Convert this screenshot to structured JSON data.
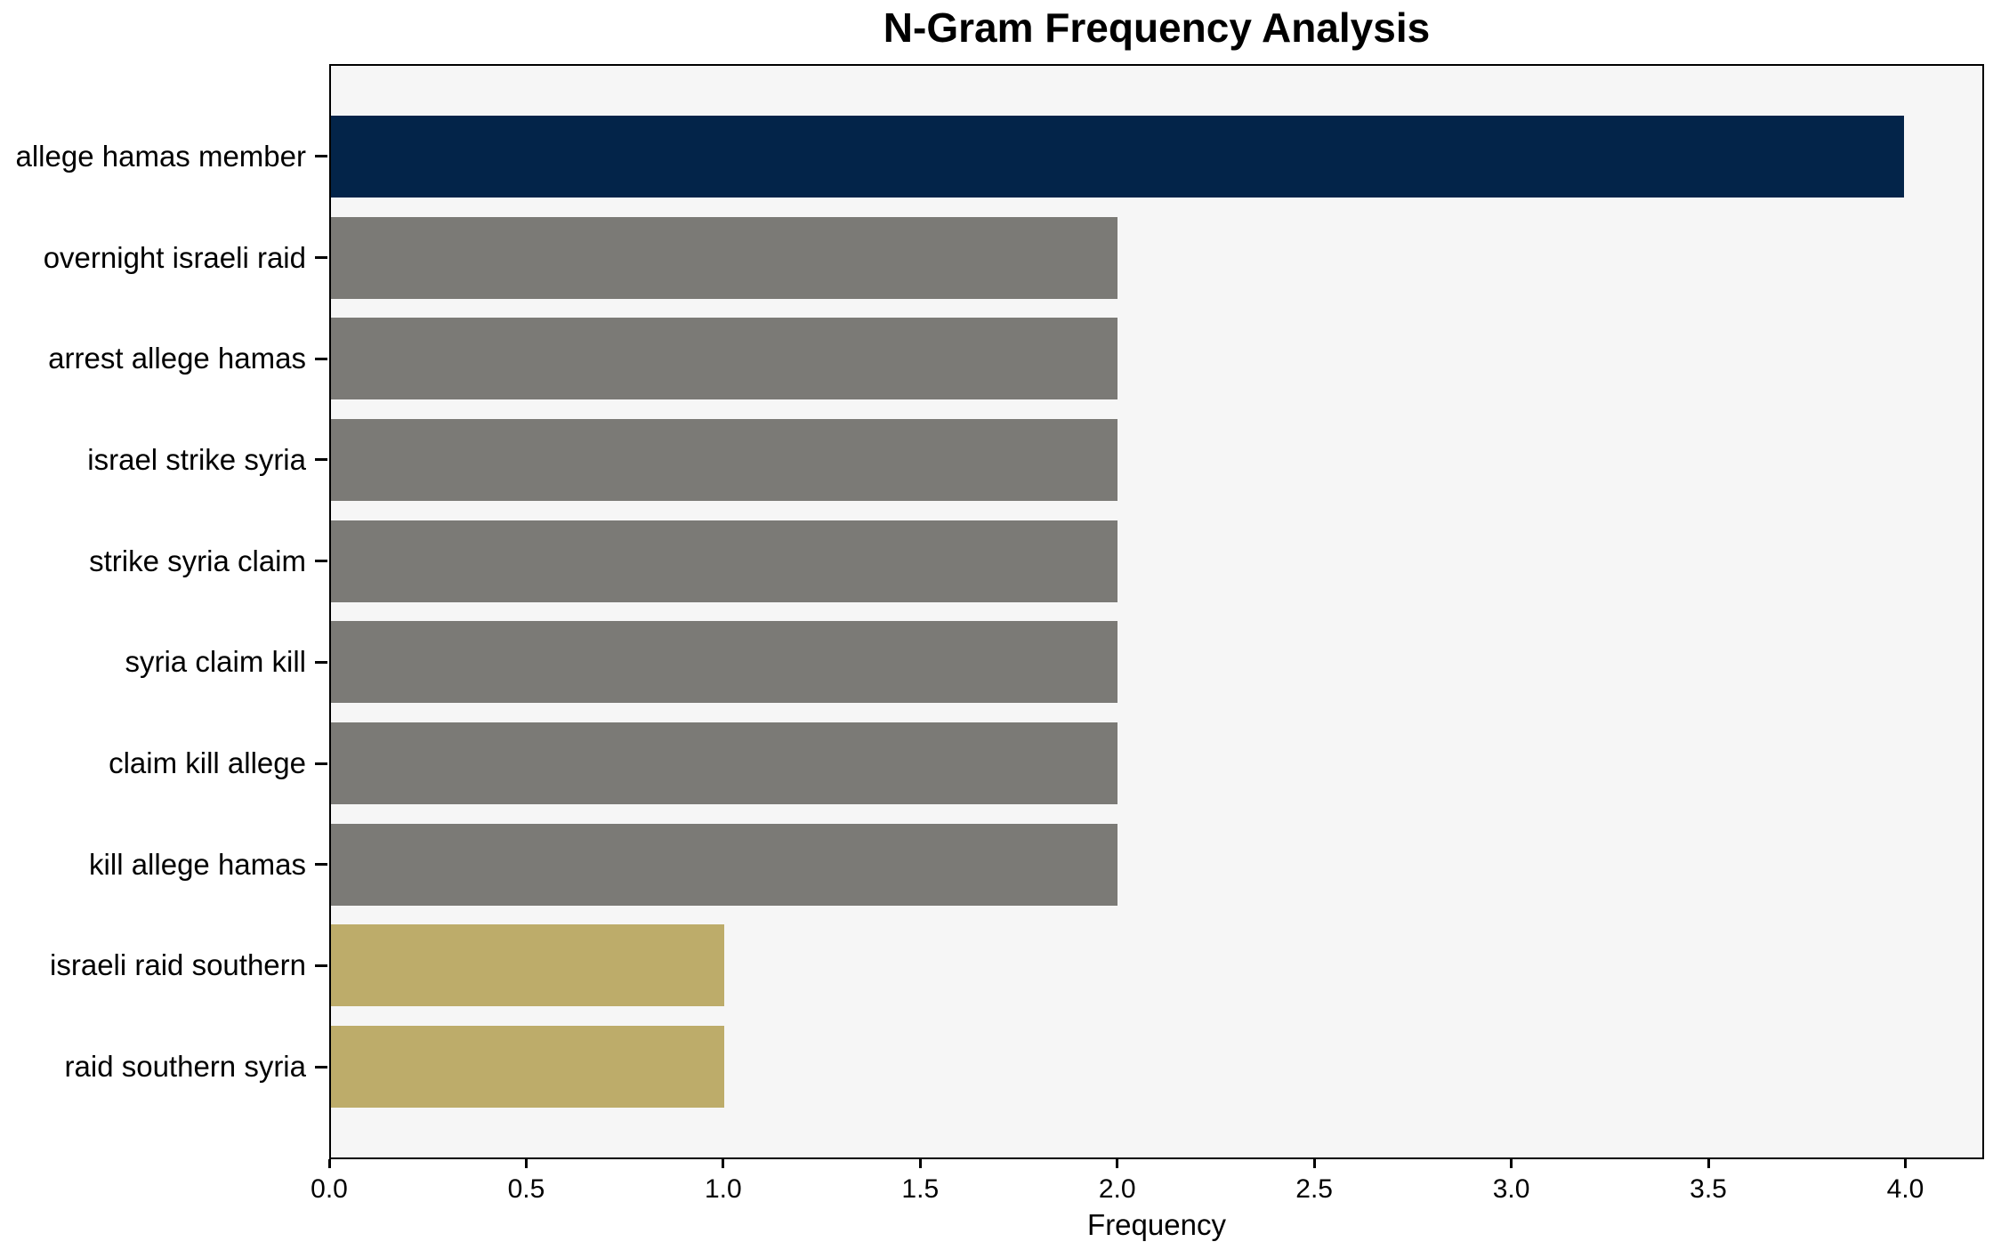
{
  "chart_data": {
    "type": "bar",
    "orientation": "horizontal",
    "title": "N-Gram Frequency Analysis",
    "xlabel": "Frequency",
    "ylabel": "",
    "categories": [
      "allege hamas member",
      "overnight israeli raid",
      "arrest allege hamas",
      "israel strike syria",
      "strike syria claim",
      "syria claim kill",
      "claim kill allege",
      "kill allege hamas",
      "israeli raid southern",
      "raid southern syria"
    ],
    "values": [
      4,
      2,
      2,
      2,
      2,
      2,
      2,
      2,
      1,
      1
    ],
    "bar_colors": [
      "#032449",
      "#7b7a76",
      "#7b7a76",
      "#7b7a76",
      "#7b7a76",
      "#7b7a76",
      "#7b7a76",
      "#7b7a76",
      "#bdac6a",
      "#bdac6a"
    ],
    "xlim": [
      0,
      4.2
    ],
    "xticks": [
      0.0,
      0.5,
      1.0,
      1.5,
      2.0,
      2.5,
      3.0,
      3.5,
      4.0
    ],
    "xtick_labels": [
      "0.0",
      "0.5",
      "1.0",
      "1.5",
      "2.0",
      "2.5",
      "3.0",
      "3.5",
      "4.0"
    ],
    "grid": false,
    "legend": null,
    "plot_background": "#f6f6f6",
    "figure_background": "#ffffff",
    "spine_color": "#000000",
    "text_color": "#000000"
  }
}
